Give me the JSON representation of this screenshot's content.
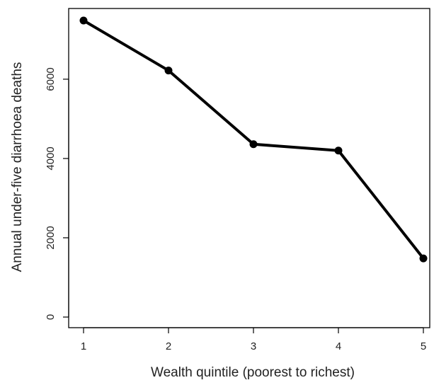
{
  "chart_data": {
    "type": "line",
    "title": "",
    "xlabel": "Wealth quintile (poorest to richest)",
    "ylabel": "Annual under-five diarrhoea deaths",
    "x": [
      1,
      2,
      3,
      4,
      5
    ],
    "series": [
      {
        "values": [
          7480,
          6220,
          4360,
          4200,
          1480
        ],
        "color": "#000000"
      }
    ],
    "xlim": [
      1,
      5
    ],
    "ylim": [
      0,
      7480
    ],
    "xticks": [
      1,
      2,
      3,
      4,
      5
    ],
    "yticks": [
      0,
      2000,
      4000,
      6000
    ],
    "grid": false,
    "legend": "none",
    "markers": "filled-circle",
    "frame": "box"
  }
}
